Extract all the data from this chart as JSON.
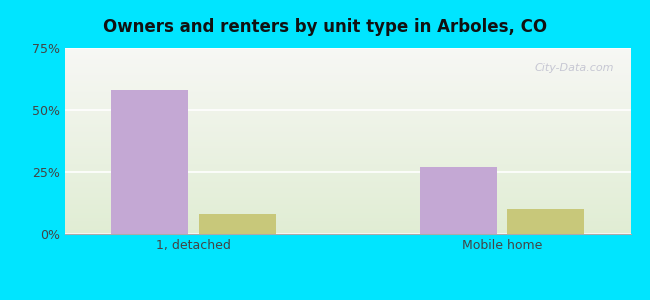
{
  "title": "Owners and renters by unit type in Arboles, CO",
  "categories": [
    "1, detached",
    "Mobile home"
  ],
  "owner_values": [
    58,
    27
  ],
  "renter_values": [
    8,
    10
  ],
  "owner_color": "#c4a8d4",
  "renter_color": "#c8c87a",
  "ylim": [
    0,
    75
  ],
  "yticks": [
    0,
    25,
    50,
    75
  ],
  "ytick_labels": [
    "0%",
    "25%",
    "50%",
    "75%"
  ],
  "bg_outer": "#00e5ff",
  "bar_width": 0.3,
  "x_positions": [
    0.5,
    1.7
  ],
  "xlim": [
    0,
    2.2
  ]
}
